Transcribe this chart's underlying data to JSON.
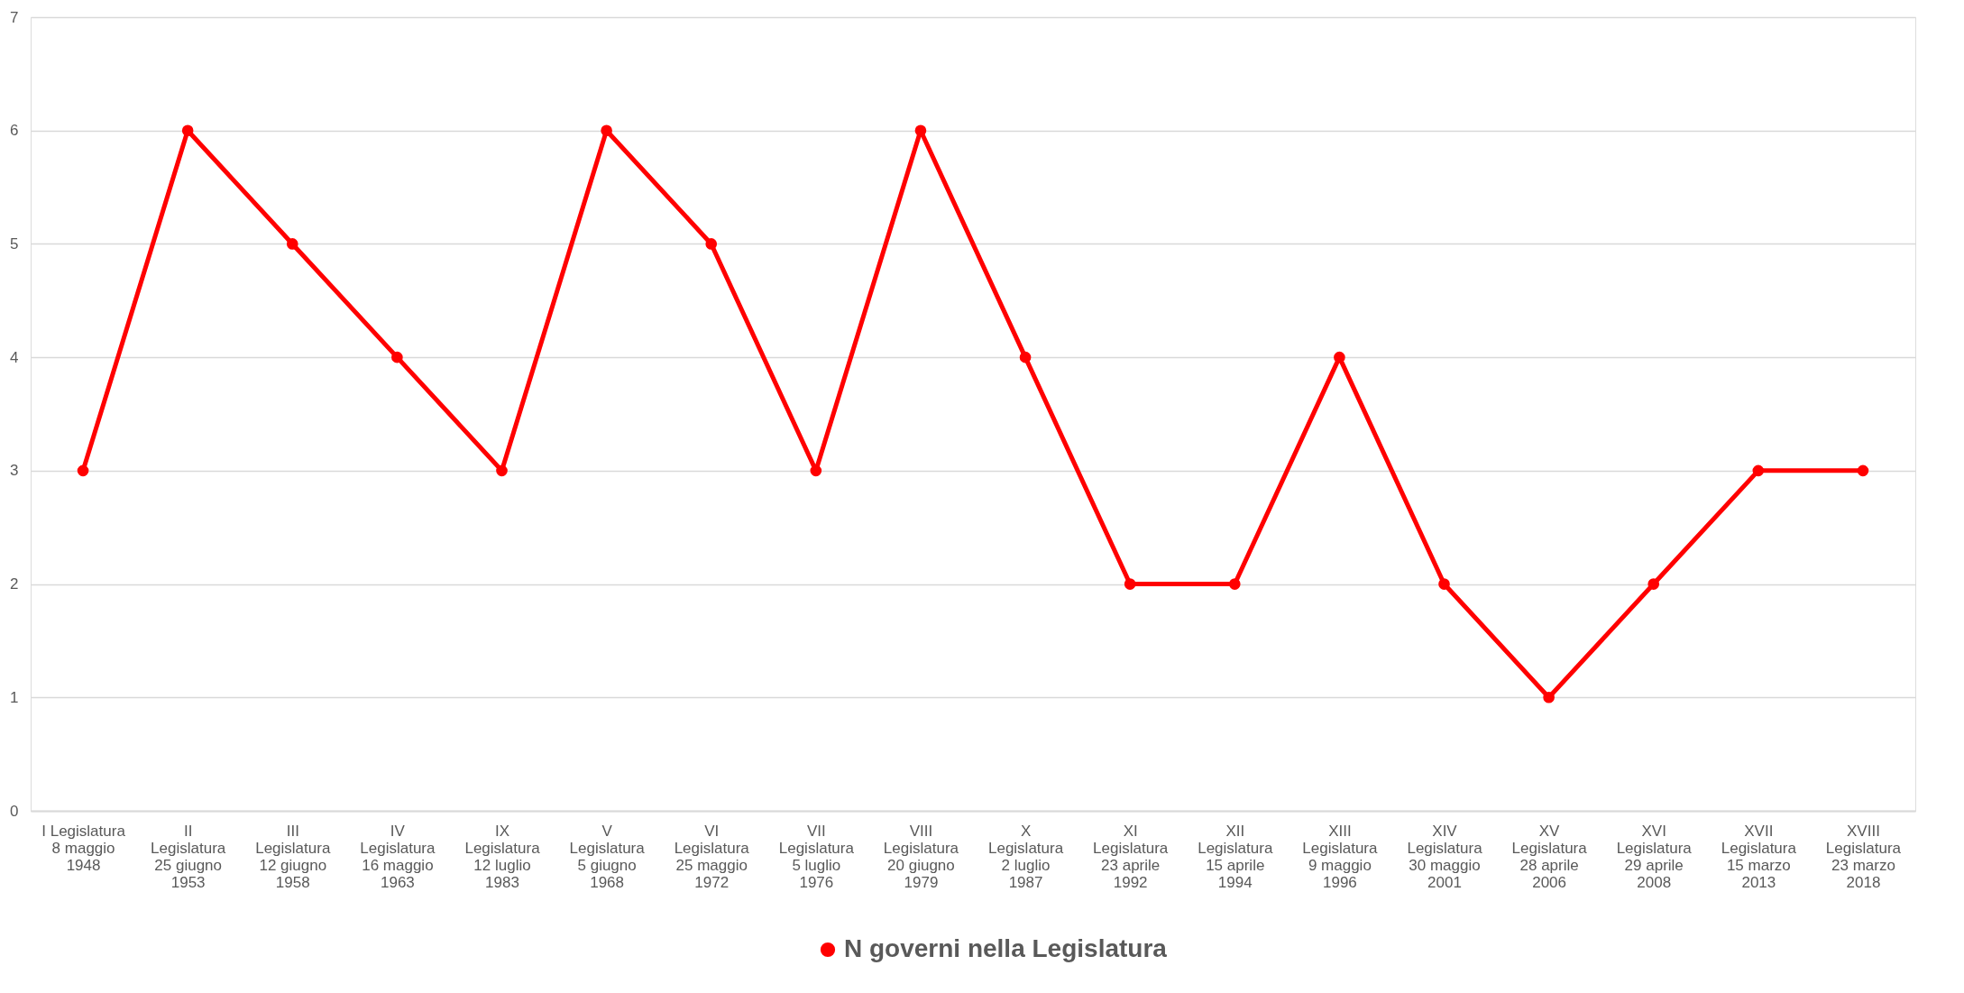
{
  "chart_data": {
    "type": "line",
    "categories": [
      "I Legislatura\n8 maggio\n1948",
      "II\nLegislatura\n25 giugno\n1953",
      "III\nLegislatura\n12 giugno\n1958",
      "IV\nLegislatura\n16 maggio\n1963",
      "IX\nLegislatura\n12 luglio\n1983",
      "V\nLegislatura\n5 giugno\n1968",
      "VI\nLegislatura\n25 maggio\n1972",
      "VII\nLegislatura\n5 luglio\n1976",
      "VIII\nLegislatura\n20 giugno\n1979",
      "X\nLegislatura\n2 luglio\n1987",
      "XI\nLegislatura\n23 aprile\n1992",
      "XII\nLegislatura\n15 aprile\n1994",
      "XIII\nLegislatura\n9 maggio\n1996",
      "XIV\nLegislatura\n30 maggio\n2001",
      "XV\nLegislatura\n28 aprile\n2006",
      "XVI\nLegislatura\n29 aprile\n2008",
      "XVII\nLegislatura\n15 marzo\n2013",
      "XVIII\nLegislatura\n23 marzo\n2018"
    ],
    "series": [
      {
        "name": "N governi nella Legislatura",
        "color": "#ff0000",
        "values": [
          3,
          6,
          5,
          4,
          3,
          6,
          5,
          3,
          6,
          4,
          2,
          2,
          4,
          2,
          1,
          2,
          3,
          3
        ]
      }
    ],
    "ylim": [
      0,
      7
    ],
    "yticks": [
      0,
      1,
      2,
      3,
      4,
      5,
      6,
      7
    ],
    "grid": "y",
    "legend": "bottom",
    "marker": "circle",
    "line_style": "solid"
  }
}
